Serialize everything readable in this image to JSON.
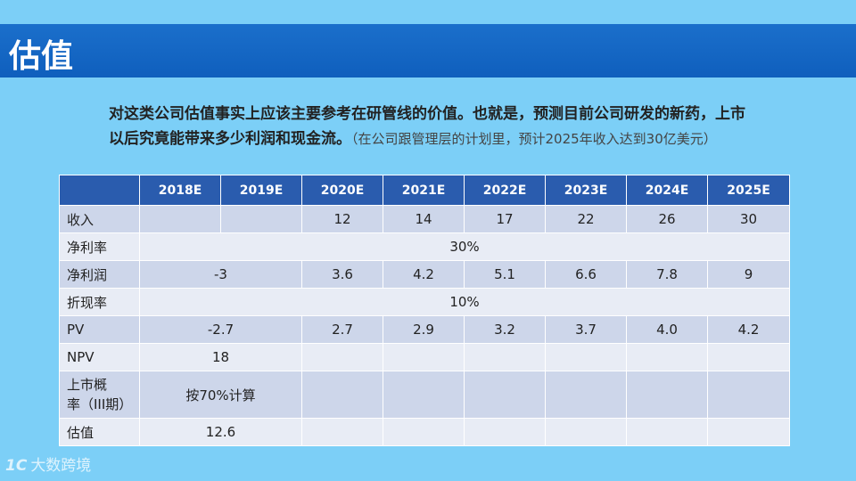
{
  "slide": {
    "title": "估值",
    "intro_bold": "对这类公司估值事实上应该主要参考在研管线的价值。也就是，预测目前公司研发的新药，上市以后究竟能带来多少利润和现金流。",
    "intro_note": "（在公司跟管理层的计划里，预计2025年收入达到30亿美元）"
  },
  "table": {
    "headers": [
      "",
      "2018E",
      "2019E",
      "2020E",
      "2021E",
      "2022E",
      "2023E",
      "2024E",
      "2025E"
    ],
    "revenue": {
      "label": "收入",
      "values": [
        "",
        "",
        "12",
        "14",
        "17",
        "22",
        "26",
        "30"
      ]
    },
    "net_margin": {
      "label": "净利率",
      "value": "30%"
    },
    "net_profit": {
      "label": "净利润",
      "merged_2018_2019": "-3",
      "values": [
        "3.6",
        "4.2",
        "5.1",
        "6.6",
        "7.8",
        "9"
      ]
    },
    "discount_rate": {
      "label": "折现率",
      "value": "10%"
    },
    "pv": {
      "label": "PV",
      "merged_2018_2019": "-2.7",
      "values": [
        "2.7",
        "2.9",
        "3.2",
        "3.7",
        "4.0",
        "4.2"
      ]
    },
    "npv": {
      "label": "NPV",
      "value": "18"
    },
    "probability": {
      "label_line1": "上市概",
      "label_line2": "率（III期）",
      "value": "按70%计算"
    },
    "valuation": {
      "label": "估值",
      "value": "12.6"
    }
  },
  "watermark": {
    "logo": "1C",
    "text": "大数跨境"
  }
}
